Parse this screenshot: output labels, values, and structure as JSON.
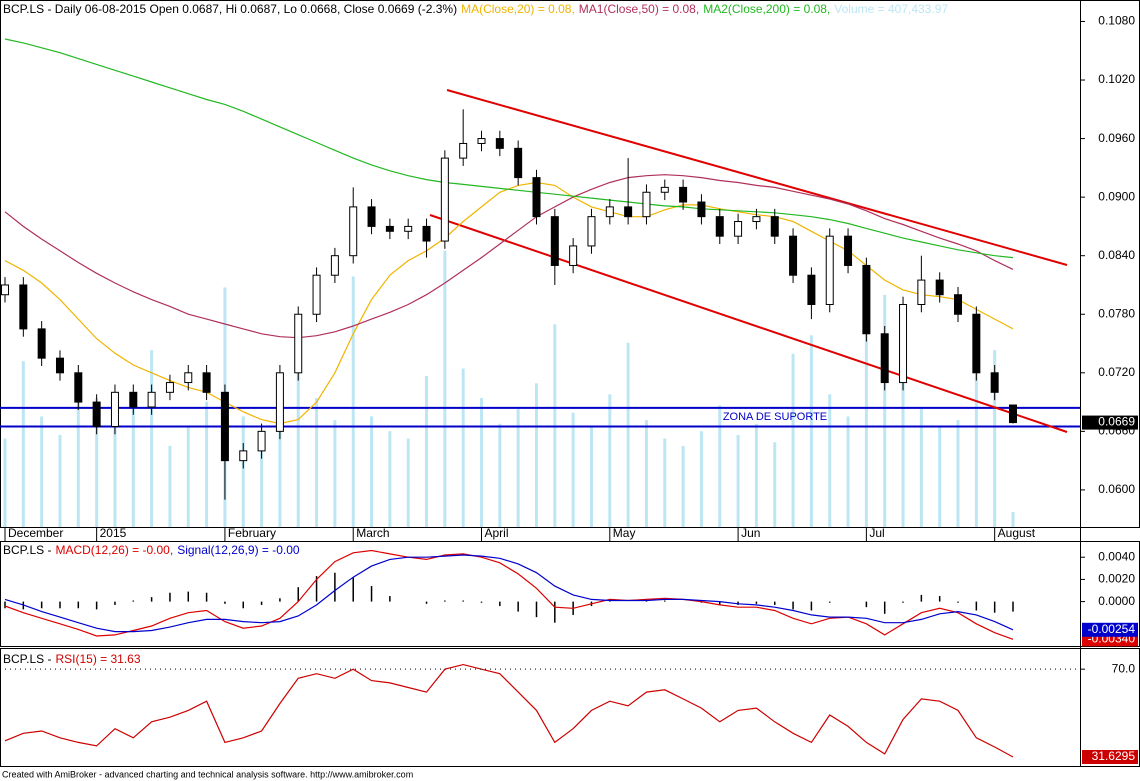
{
  "chart_data": [
    {
      "type": "candlestick",
      "title": "BCP.LS - Daily 06-08-2015 Open 0.0687, Hi 0.0687, Lo 0.0668, Close 0.0669 (-2.3%)",
      "categories": [
        "December",
        null,
        null,
        null,
        null,
        "2015",
        null,
        null,
        null,
        null,
        null,
        null,
        "February",
        null,
        null,
        null,
        null,
        null,
        null,
        "March",
        null,
        null,
        null,
        null,
        null,
        null,
        "April",
        null,
        null,
        null,
        null,
        null,
        null,
        "May",
        null,
        null,
        null,
        null,
        null,
        null,
        "Jun",
        null,
        null,
        null,
        null,
        null,
        null,
        "Jul",
        null,
        null,
        null,
        null,
        null,
        null,
        "August",
        null
      ],
      "open": [
        0.08,
        0.081,
        0.0765,
        0.0735,
        0.072,
        0.069,
        0.0665,
        0.07,
        0.0685,
        0.07,
        0.071,
        0.072,
        0.07,
        0.063,
        0.064,
        0.066,
        0.072,
        0.078,
        0.082,
        0.084,
        0.089,
        0.087,
        0.0865,
        0.087,
        0.0855,
        0.094,
        0.0955,
        0.096,
        0.095,
        0.092,
        0.088,
        0.083,
        0.085,
        0.088,
        0.089,
        0.088,
        0.0905,
        0.091,
        0.0895,
        0.088,
        0.086,
        0.0875,
        0.088,
        0.086,
        0.082,
        0.079,
        0.086,
        0.083,
        0.076,
        0.071,
        0.079,
        0.0815,
        0.08,
        0.078,
        0.072,
        0.0687
      ],
      "high": [
        0.0818,
        0.0818,
        0.0773,
        0.0743,
        0.0728,
        0.0698,
        0.0708,
        0.0708,
        0.0708,
        0.0718,
        0.0728,
        0.0728,
        0.0708,
        0.0648,
        0.0668,
        0.0728,
        0.0788,
        0.0828,
        0.0848,
        0.091,
        0.0898,
        0.0878,
        0.0878,
        0.0878,
        0.0948,
        0.099,
        0.0968,
        0.0968,
        0.0958,
        0.0928,
        0.0888,
        0.0858,
        0.0888,
        0.0898,
        0.094,
        0.0913,
        0.0918,
        0.0918,
        0.0903,
        0.0888,
        0.0883,
        0.0888,
        0.0888,
        0.0868,
        0.0828,
        0.0868,
        0.0868,
        0.0838,
        0.0768,
        0.0798,
        0.084,
        0.0823,
        0.0808,
        0.0788,
        0.0728,
        0.0687
      ],
      "low": [
        0.0792,
        0.0757,
        0.0727,
        0.0712,
        0.0682,
        0.0657,
        0.0657,
        0.0677,
        0.0677,
        0.0692,
        0.0702,
        0.0692,
        0.059,
        0.0622,
        0.0632,
        0.0652,
        0.0712,
        0.0772,
        0.0812,
        0.0832,
        0.0862,
        0.0857,
        0.0857,
        0.0838,
        0.0847,
        0.0932,
        0.0947,
        0.0942,
        0.0912,
        0.0872,
        0.081,
        0.0822,
        0.0842,
        0.0872,
        0.0872,
        0.0872,
        0.0897,
        0.0887,
        0.0872,
        0.0852,
        0.0852,
        0.0867,
        0.0852,
        0.0812,
        0.0775,
        0.0782,
        0.0822,
        0.0752,
        0.0702,
        0.0702,
        0.0782,
        0.0792,
        0.0772,
        0.0712,
        0.0692,
        0.0668
      ],
      "close": [
        0.081,
        0.0765,
        0.0735,
        0.072,
        0.069,
        0.0665,
        0.07,
        0.0685,
        0.07,
        0.071,
        0.072,
        0.07,
        0.063,
        0.064,
        0.066,
        0.072,
        0.078,
        0.082,
        0.084,
        0.089,
        0.087,
        0.0865,
        0.087,
        0.0855,
        0.094,
        0.0955,
        0.096,
        0.095,
        0.092,
        0.088,
        0.083,
        0.085,
        0.088,
        0.089,
        0.088,
        0.0905,
        0.091,
        0.0895,
        0.088,
        0.086,
        0.0875,
        0.088,
        0.086,
        0.082,
        0.079,
        0.086,
        0.083,
        0.076,
        0.071,
        0.079,
        0.0815,
        0.08,
        0.078,
        0.072,
        0.07,
        0.0669
      ],
      "candle_colors": {
        "up": "#ffffff",
        "down": "#000000"
      },
      "series": [
        {
          "name": "MA(Close,20) = 0.08,",
          "color": "#f0b400",
          "values": [
            0.0835,
            0.0825,
            0.0812,
            0.0795,
            0.0775,
            0.0755,
            0.074,
            0.0728,
            0.072,
            0.0712,
            0.0705,
            0.07,
            0.069,
            0.068,
            0.0672,
            0.0668,
            0.0672,
            0.069,
            0.072,
            0.076,
            0.0795,
            0.082,
            0.0835,
            0.0845,
            0.0858,
            0.0875,
            0.089,
            0.0905,
            0.0912,
            0.0915,
            0.0912,
            0.09,
            0.089,
            0.0885,
            0.088,
            0.088,
            0.0887,
            0.0892,
            0.0892,
            0.0888,
            0.0885,
            0.0882,
            0.088,
            0.0875,
            0.0865,
            0.0855,
            0.0845,
            0.083,
            0.0815,
            0.0805,
            0.08,
            0.0798,
            0.0795,
            0.0785,
            0.0775,
            0.0765
          ]
        },
        {
          "name": "MA1(Close,50) = 0.08,",
          "color": "#b0305a",
          "values": [
            0.0885,
            0.087,
            0.0857,
            0.0845,
            0.0833,
            0.0822,
            0.0812,
            0.0803,
            0.0795,
            0.0788,
            0.078,
            0.0775,
            0.077,
            0.0765,
            0.076,
            0.0757,
            0.0756,
            0.0758,
            0.0762,
            0.0768,
            0.0775,
            0.0782,
            0.079,
            0.08,
            0.0812,
            0.0825,
            0.0838,
            0.0852,
            0.0866,
            0.088,
            0.089,
            0.09,
            0.0908,
            0.0915,
            0.092,
            0.0922,
            0.0923,
            0.0922,
            0.092,
            0.0917,
            0.0915,
            0.0912,
            0.091,
            0.0906,
            0.0902,
            0.0898,
            0.0893,
            0.0886,
            0.0878,
            0.0872,
            0.0865,
            0.0858,
            0.0852,
            0.0845,
            0.0835,
            0.0826
          ]
        },
        {
          "name": "MA2(Close,200) = 0.08,",
          "color": "#22b822",
          "values": [
            0.1062,
            0.1058,
            0.1053,
            0.1048,
            0.1042,
            0.1036,
            0.103,
            0.1024,
            0.1018,
            0.1012,
            0.1006,
            0.1,
            0.0995,
            0.0988,
            0.098,
            0.0972,
            0.0964,
            0.0956,
            0.0948,
            0.094,
            0.0933,
            0.0927,
            0.0922,
            0.0918,
            0.0915,
            0.0913,
            0.0911,
            0.0909,
            0.0907,
            0.0905,
            0.0903,
            0.0901,
            0.0899,
            0.0897,
            0.0895,
            0.0893,
            0.0891,
            0.089,
            0.0888,
            0.0887,
            0.0886,
            0.0885,
            0.0884,
            0.0882,
            0.088,
            0.0877,
            0.0873,
            0.0868,
            0.0863,
            0.0858,
            0.0854,
            0.085,
            0.0846,
            0.0843,
            0.084,
            0.0838
          ]
        }
      ],
      "volume": {
        "name": "Volume = 407,433.97",
        "color": "#bde6f4",
        "ylim": [
          0,
          14300000
        ],
        "values": [
          2400000,
          4500000,
          3000000,
          2500000,
          4000000,
          3500000,
          2800000,
          3200000,
          4800000,
          2200000,
          2700000,
          3400000,
          6500000,
          3000000,
          2500000,
          3800000,
          4200000,
          3500000,
          2900000,
          6800000,
          3000000,
          2600000,
          2400000,
          4100000,
          7500000,
          4300000,
          3500000,
          2800000,
          3200000,
          3900000,
          5500000,
          3100000,
          2700000,
          3600000,
          5000000,
          2900000,
          2400000,
          2200000,
          2600000,
          3300000,
          2500000,
          2800000,
          2300000,
          4700000,
          5200000,
          3600000,
          3000000,
          5800000,
          6300000,
          4000000,
          3200000,
          2700000,
          2900000,
          5500000,
          4800000,
          407433.97
        ]
      },
      "support_lines": {
        "values": [
          0.0684,
          0.0665
        ],
        "color": "#0000c8",
        "label": "ZONA DE SUPORTE"
      },
      "ylim": [
        0.0562,
        0.1102
      ],
      "yticks": [
        {
          "value": 0.06,
          "label": "0.0600"
        },
        {
          "value": 0.066,
          "label": "0.0660"
        },
        {
          "value": 0.072,
          "label": "0.0720"
        },
        {
          "value": 0.078,
          "label": "0.0780"
        },
        {
          "value": 0.084,
          "label": "0.0840"
        },
        {
          "value": 0.09,
          "label": "0.0900"
        },
        {
          "value": 0.096,
          "label": "0.0960"
        },
        {
          "value": 0.102,
          "label": "0.1020"
        },
        {
          "value": 0.108,
          "label": "0.1080"
        }
      ]
    },
    {
      "type": "line",
      "title": "BCP.LS -",
      "histogram": {
        "color": "#000000",
        "values": [
          -0.0006,
          -0.0007,
          -0.0006,
          -0.0006,
          -0.0006,
          -0.0007,
          -0.0003,
          0.0001,
          0.0004,
          0.0008,
          0.0009,
          0.0008,
          -0.0002,
          -0.0006,
          -0.0003,
          0.0003,
          0.0013,
          0.0023,
          0.0026,
          0.0022,
          0.0014,
          0.0005,
          0,
          -0.0002,
          0.0001,
          0.0001,
          -0.0001,
          -0.0004,
          -0.0009,
          -0.0014,
          -0.0019,
          -0.0012,
          -0.0004,
          0.0001,
          0,
          0.0001,
          0.0001,
          0,
          -0.0001,
          -0.0003,
          -0.0003,
          -0.0002,
          -0.0003,
          -0.0007,
          -0.0008,
          -0.0001,
          0,
          -0.0005,
          -0.0011,
          -0.0001,
          0.0006,
          0.0005,
          -0.0001,
          -0.0008,
          -0.001,
          -0.0009
        ]
      },
      "series": [
        {
          "name": "MACD(12,26) = -0.00,",
          "color": "#dd0000",
          "values": [
            -0.0004,
            -0.001,
            -0.0015,
            -0.002,
            -0.0025,
            -0.0031,
            -0.003,
            -0.0026,
            -0.0022,
            -0.0015,
            -0.001,
            -0.0008,
            -0.0018,
            -0.0024,
            -0.0022,
            -0.0015,
            0,
            0.002,
            0.0036,
            0.0044,
            0.0046,
            0.0043,
            0.004,
            0.0038,
            0.0042,
            0.0043,
            0.004,
            0.0035,
            0.0025,
            0.0012,
            -0.0005,
            -0.0006,
            -0.0002,
            0.0002,
            0.0001,
            0.0002,
            0.0003,
            0.0002,
            0,
            -0.0003,
            -0.0005,
            -0.0005,
            -0.0008,
            -0.0015,
            -0.002,
            -0.0015,
            -0.0014,
            -0.002,
            -0.003,
            -0.002,
            -0.001,
            -0.0006,
            -0.001,
            -0.002,
            -0.0028,
            -0.0034
          ],
          "value_labels": [
            null,
            null,
            null,
            null,
            null,
            null,
            null,
            null,
            null,
            null,
            null,
            null,
            null,
            null,
            null,
            null,
            null,
            null,
            null,
            null,
            null,
            null,
            null,
            null,
            null,
            null,
            null,
            null,
            null,
            null,
            null,
            null,
            null,
            null,
            null,
            null,
            null,
            null,
            null,
            null,
            null,
            null,
            null,
            null,
            null,
            null,
            null,
            null,
            null,
            null,
            null,
            null,
            null,
            null,
            null,
            "-0.00340"
          ]
        },
        {
          "name": "Signal(12,26,9) = -0.00",
          "color": "#0000cc",
          "values": [
            0.0002,
            -0.0003,
            -0.0009,
            -0.0014,
            -0.0019,
            -0.0024,
            -0.0027,
            -0.0027,
            -0.0026,
            -0.0023,
            -0.0019,
            -0.0016,
            -0.0016,
            -0.0018,
            -0.0019,
            -0.0018,
            -0.0013,
            -0.0003,
            0.001,
            0.0022,
            0.0032,
            0.0038,
            0.004,
            0.004,
            0.0041,
            0.0042,
            0.0041,
            0.0039,
            0.0034,
            0.0026,
            0.0014,
            0.0006,
            0.0002,
            0.0001,
            0.0001,
            0.0001,
            0.0002,
            0.0002,
            0.0001,
            0,
            -0.0002,
            -0.0003,
            -0.0005,
            -0.0008,
            -0.0012,
            -0.0014,
            -0.0014,
            -0.0015,
            -0.0019,
            -0.0019,
            -0.0016,
            -0.0011,
            -0.0009,
            -0.0012,
            -0.0018,
            -0.00254
          ]
        }
      ],
      "ylim": [
        -0.004,
        0.0051
      ],
      "yticks": [
        {
          "value": 0.004,
          "label": "0.0040"
        },
        {
          "value": 0.002,
          "label": "0.0020"
        },
        {
          "value": 0,
          "label": "0.0000"
        }
      ]
    },
    {
      "type": "line",
      "title": "BCP.LS -",
      "series": [
        {
          "name": "RSI(15) = 31.63",
          "color": "#cc0000",
          "values": [
            38.7,
            42,
            43,
            40,
            38,
            36.5,
            44,
            40,
            47,
            49,
            52,
            56,
            38,
            40,
            43,
            55,
            66,
            68,
            66,
            70,
            65,
            64,
            62,
            60,
            70,
            72,
            70,
            68,
            60,
            52,
            38,
            44,
            52,
            56,
            54,
            60,
            61,
            57,
            53,
            47,
            52,
            53,
            47,
            42,
            38,
            50,
            45,
            38,
            33,
            48,
            57,
            56,
            52,
            40,
            36,
            31.6295
          ]
        }
      ],
      "ylim": [
        27.7,
        77.5
      ],
      "yticks": [
        {
          "value": 70,
          "label": "70.0"
        }
      ],
      "grid": true
    }
  ],
  "footer": "Created with AmiBroker - advanced charting and technical analysis software. http://www.amibroker.com"
}
